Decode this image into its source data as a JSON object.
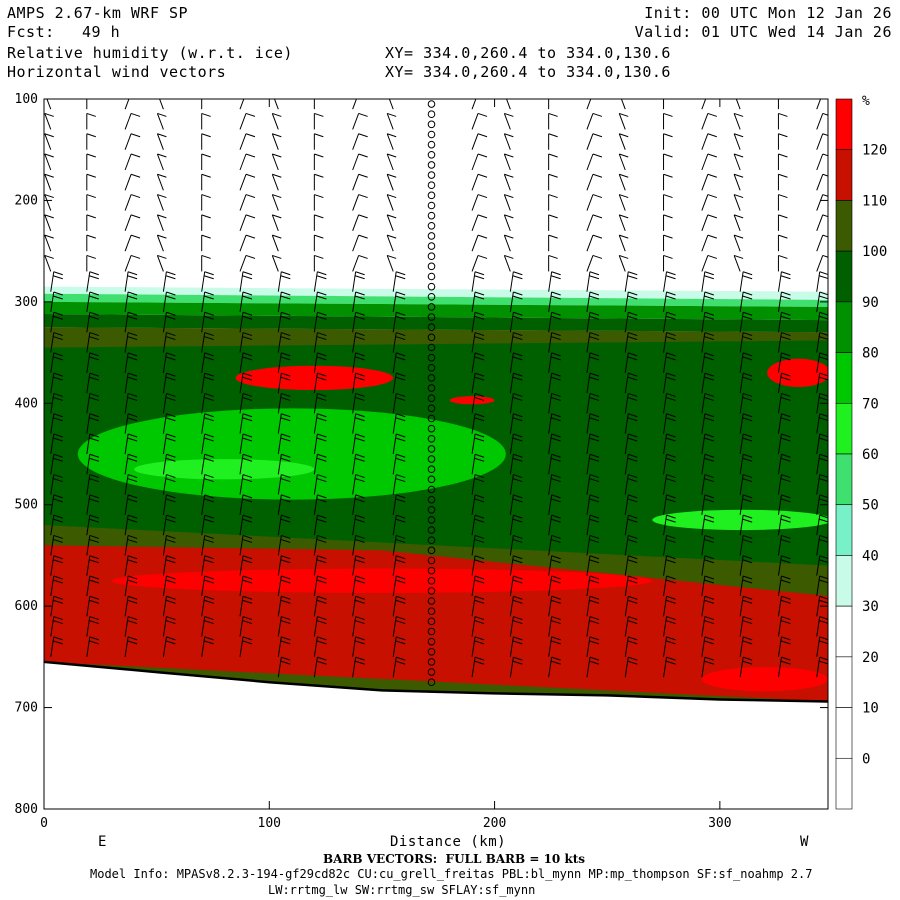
{
  "header": {
    "title_left": "AMPS 2.67-km WRF SP",
    "fcst_label": "Fcst:",
    "fcst_value": "49 h",
    "field_1": "Relative humidity (w.r.t. ice)",
    "field_2": "Horizontal wind vectors",
    "xy_1": "XY= 334.0,260.4 to 334.0,130.6",
    "xy_2": "XY= 334.0,260.4 to 334.0,130.6",
    "init": "Init: 00 UTC Mon 12 Jan 26",
    "valid": "Valid: 01 UTC Wed 14 Jan 26"
  },
  "footer": {
    "barb_note": "BARB VECTORS:  FULL BARB = 10 kts",
    "model_info_1": "Model Info: MPASv8.2.3-194-gf29cd82c CU:cu_grell_freitas PBL:bl_mynn MP:mp_thompson SF:sf_noahmp 2.7",
    "model_info_2": "LW:rrtmg_lw SW:rrtmg_sw SFLAY:sf_mynn"
  },
  "chart_data": {
    "type": "heatmap",
    "title": "Relative humidity (w.r.t. ice)",
    "xlabel": "Distance (km)",
    "ylabel": "",
    "xlim": [
      0,
      348
    ],
    "ylim": [
      800,
      100
    ],
    "x_ticks": [
      0,
      100,
      200,
      300
    ],
    "y_ticks": [
      100,
      200,
      300,
      400,
      500,
      600,
      700,
      800
    ],
    "direction_left": "E",
    "direction_right": "W",
    "colorbar": {
      "unit": "%",
      "levels": [
        0,
        10,
        20,
        30,
        40,
        50,
        60,
        70,
        80,
        90,
        100,
        110,
        120
      ],
      "colors": [
        "#ffffff",
        "#ffffff",
        "#ffffff",
        "#ffffff",
        "#c8fbe8",
        "#78f0c8",
        "#40e070",
        "#20f020",
        "#00c800",
        "#009000",
        "#006000",
        "#3c5a00",
        "#c81000",
        "#ff0000"
      ]
    },
    "terrain_profile": [
      {
        "x": 0,
        "p": 655
      },
      {
        "x": 50,
        "p": 665
      },
      {
        "x": 100,
        "p": 675
      },
      {
        "x": 150,
        "p": 683
      },
      {
        "x": 200,
        "p": 686
      },
      {
        "x": 250,
        "p": 688
      },
      {
        "x": 300,
        "p": 692
      },
      {
        "x": 348,
        "p": 694
      }
    ],
    "rh_bands": [
      {
        "level": 30,
        "top": [
          [
            0,
            285
          ],
          [
            348,
            290
          ]
        ],
        "bottom": [
          [
            0,
            292
          ],
          [
            348,
            298
          ]
        ]
      },
      {
        "level": 50,
        "top": [
          [
            0,
            292
          ],
          [
            348,
            298
          ]
        ],
        "bottom": [
          [
            0,
            300
          ],
          [
            348,
            305
          ]
        ]
      },
      {
        "level": 80,
        "top": [
          [
            0,
            300
          ],
          [
            348,
            305
          ]
        ],
        "bottom": [
          [
            0,
            312
          ],
          [
            348,
            318
          ]
        ]
      },
      {
        "level": 90,
        "top": [
          [
            0,
            312
          ],
          [
            348,
            318
          ]
        ],
        "bottom": [
          [
            0,
            325
          ],
          [
            348,
            330
          ]
        ]
      },
      {
        "level": 100,
        "top": [
          [
            0,
            325
          ],
          [
            348,
            330
          ]
        ],
        "bottom": [
          [
            0,
            345
          ],
          [
            348,
            338
          ]
        ]
      },
      {
        "level": 110,
        "top": [
          [
            0,
            540
          ],
          [
            150,
            545
          ],
          [
            348,
            590
          ]
        ],
        "bottom": [
          [
            0,
            655
          ],
          [
            348,
            694
          ]
        ]
      }
    ],
    "rh_patches": [
      {
        "level": 120,
        "cx": 120,
        "cp": 375,
        "rx": 35,
        "rp": 12
      },
      {
        "level": 120,
        "cx": 335,
        "cp": 370,
        "rx": 14,
        "rp": 14
      },
      {
        "level": 120,
        "cx": 190,
        "cp": 397,
        "rx": 10,
        "rp": 4
      },
      {
        "level": 70,
        "cx": 110,
        "cp": 450,
        "rx": 95,
        "rp": 45
      },
      {
        "level": 60,
        "cx": 80,
        "cp": 465,
        "rx": 40,
        "rp": 10
      },
      {
        "level": 60,
        "cx": 310,
        "cp": 515,
        "rx": 40,
        "rp": 10
      },
      {
        "level": 120,
        "cx": 150,
        "cp": 575,
        "rx": 120,
        "rp": 12
      },
      {
        "level": 120,
        "cx": 320,
        "cp": 672,
        "rx": 28,
        "rp": 12
      }
    ],
    "barb_columns": [
      3,
      19,
      36,
      53,
      70,
      87,
      104,
      120,
      137,
      155,
      172,
      190,
      207,
      224,
      241,
      258,
      275,
      292,
      309,
      326,
      343
    ],
    "calm_column_x": 172,
    "barb_note": "FULL BARB = 10 kts"
  }
}
